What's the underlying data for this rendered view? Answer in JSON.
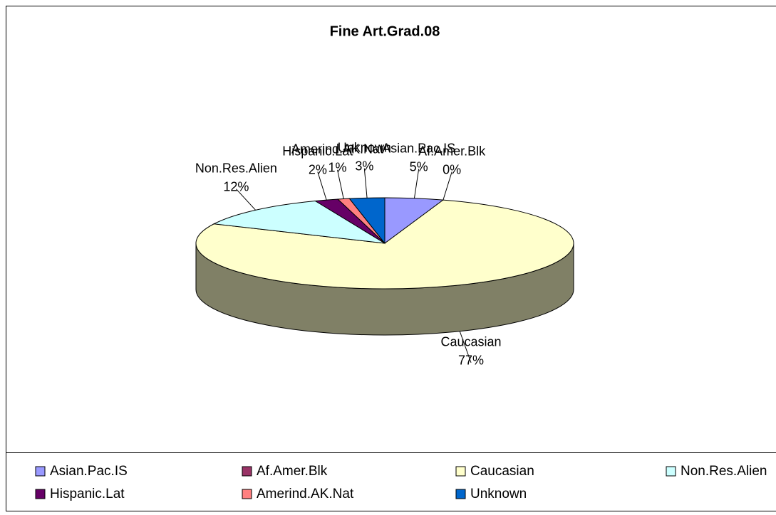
{
  "chart_data": {
    "type": "pie",
    "title": "Fine Art.Grad.08",
    "categories": [
      "Asian.Pac.IS",
      "Af.Amer.Blk",
      "Caucasian",
      "Non.Res.Alien",
      "Hispanic.Lat",
      "Amerind.AK.Nat",
      "Unknown"
    ],
    "values": [
      5,
      0,
      77,
      12,
      2,
      1,
      3
    ],
    "value_labels": [
      "5%",
      "0%",
      "77%",
      "12%",
      "2%",
      "1%",
      "3%"
    ],
    "colors": [
      "#9999ff",
      "#993366",
      "#ffffcc",
      "#ccffff",
      "#660066",
      "#ff8080",
      "#0066cc"
    ],
    "legend": "bottom"
  }
}
